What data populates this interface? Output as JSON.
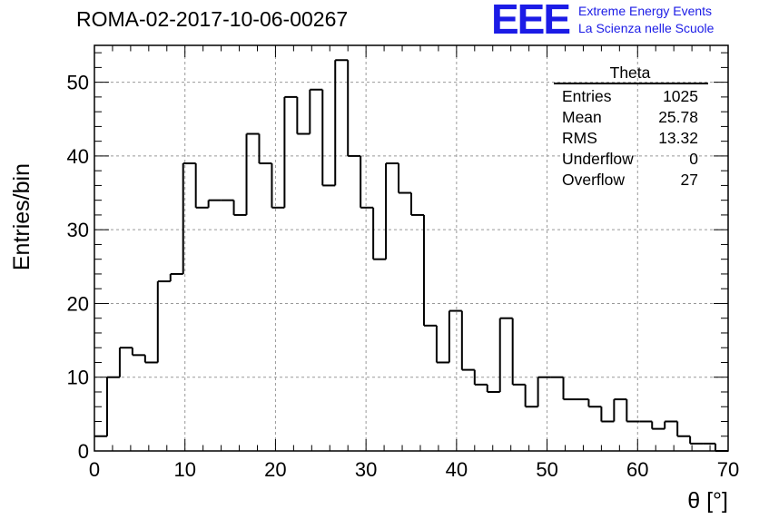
{
  "title": "ROMA-02-2017-10-06-00267",
  "logo": {
    "mark": "EEE",
    "line1": "Extreme Energy Events",
    "line2": "La Scienza nelle Scuole",
    "color": "#1b1be6"
  },
  "stats": {
    "name": "Theta",
    "rows": [
      {
        "label": "Entries",
        "value": "1025"
      },
      {
        "label": "Mean",
        "value": "25.78"
      },
      {
        "label": "RMS",
        "value": "13.32"
      },
      {
        "label": "Underflow",
        "value": "0"
      },
      {
        "label": "Overflow",
        "value": "27"
      }
    ]
  },
  "chart_data": {
    "type": "histogram",
    "title": "ROMA-02-2017-10-06-00267",
    "xlabel": "θ [°]",
    "ylabel": "Entries/bin",
    "xlim": [
      0,
      70
    ],
    "ylim": [
      0,
      55
    ],
    "grid": true,
    "bin_edges_start": 0,
    "bin_width": 1.4,
    "x_ticks": [
      0,
      10,
      20,
      30,
      40,
      50,
      60,
      70
    ],
    "y_ticks": [
      0,
      10,
      20,
      30,
      40,
      50
    ],
    "values": [
      2,
      10,
      14,
      13,
      12,
      23,
      24,
      39,
      33,
      34,
      34,
      32,
      43,
      39,
      33,
      48,
      43,
      49,
      36,
      53,
      40,
      33,
      26,
      39,
      35,
      32,
      17,
      12,
      19,
      11,
      9,
      8,
      18,
      9,
      6,
      10,
      10,
      7,
      7,
      6,
      4,
      7,
      4,
      4,
      3,
      4,
      2,
      1,
      1,
      0
    ]
  }
}
